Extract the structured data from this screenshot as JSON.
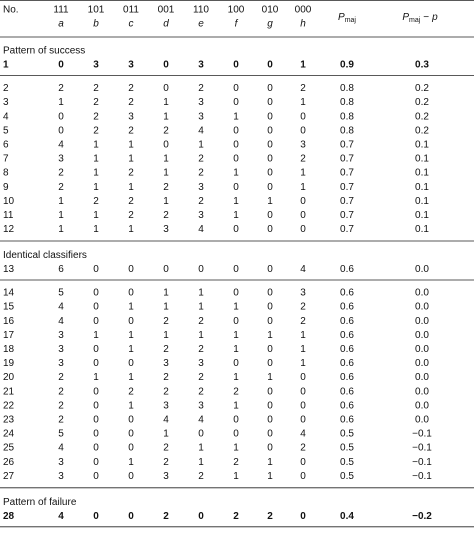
{
  "header": {
    "no": "No.",
    "columns": [
      {
        "code": "111",
        "letter": "a"
      },
      {
        "code": "101",
        "letter": "b"
      },
      {
        "code": "011",
        "letter": "c"
      },
      {
        "code": "001",
        "letter": "d"
      },
      {
        "code": "110",
        "letter": "e"
      },
      {
        "code": "100",
        "letter": "f"
      },
      {
        "code": "010",
        "letter": "g"
      },
      {
        "code": "000",
        "letter": "h"
      }
    ],
    "pmaj": {
      "main": "P",
      "sub": "maj"
    },
    "diff": {
      "main": "P",
      "sub": "maj",
      "op": "−",
      "var": "p"
    }
  },
  "sections": [
    {
      "title": "Pattern of success",
      "rows": [
        [
          "1",
          "0",
          "3",
          "3",
          "0",
          "3",
          "0",
          "0",
          "1",
          "0.9",
          "0.3"
        ],
        [
          "2",
          "2",
          "2",
          "2",
          "0",
          "2",
          "0",
          "0",
          "2",
          "0.8",
          "0.2"
        ],
        [
          "3",
          "1",
          "2",
          "2",
          "1",
          "3",
          "0",
          "0",
          "1",
          "0.8",
          "0.2"
        ],
        [
          "4",
          "0",
          "2",
          "3",
          "1",
          "3",
          "1",
          "0",
          "0",
          "0.8",
          "0.2"
        ],
        [
          "5",
          "0",
          "2",
          "2",
          "2",
          "4",
          "0",
          "0",
          "0",
          "0.8",
          "0.2"
        ],
        [
          "6",
          "4",
          "1",
          "1",
          "0",
          "1",
          "0",
          "0",
          "3",
          "0.7",
          "0.1"
        ],
        [
          "7",
          "3",
          "1",
          "1",
          "1",
          "2",
          "0",
          "0",
          "2",
          "0.7",
          "0.1"
        ],
        [
          "8",
          "2",
          "1",
          "2",
          "1",
          "2",
          "1",
          "0",
          "1",
          "0.7",
          "0.1"
        ],
        [
          "9",
          "2",
          "1",
          "1",
          "2",
          "3",
          "0",
          "0",
          "1",
          "0.7",
          "0.1"
        ],
        [
          "10",
          "1",
          "2",
          "2",
          "1",
          "2",
          "1",
          "1",
          "0",
          "0.7",
          "0.1"
        ],
        [
          "11",
          "1",
          "1",
          "2",
          "2",
          "3",
          "1",
          "0",
          "0",
          "0.7",
          "0.1"
        ],
        [
          "12",
          "1",
          "1",
          "1",
          "3",
          "4",
          "0",
          "0",
          "0",
          "0.7",
          "0.1"
        ]
      ]
    },
    {
      "title": "Identical classifiers",
      "rows": [
        [
          "13",
          "6",
          "0",
          "0",
          "0",
          "0",
          "0",
          "0",
          "4",
          "0.6",
          "0.0"
        ],
        [
          "14",
          "5",
          "0",
          "0",
          "1",
          "1",
          "0",
          "0",
          "3",
          "0.6",
          "0.0"
        ],
        [
          "15",
          "4",
          "0",
          "1",
          "1",
          "1",
          "1",
          "0",
          "2",
          "0.6",
          "0.0"
        ],
        [
          "16",
          "4",
          "0",
          "0",
          "2",
          "2",
          "0",
          "0",
          "2",
          "0.6",
          "0.0"
        ],
        [
          "17",
          "3",
          "1",
          "1",
          "1",
          "1",
          "1",
          "1",
          "1",
          "0.6",
          "0.0"
        ],
        [
          "18",
          "3",
          "0",
          "1",
          "2",
          "2",
          "1",
          "0",
          "1",
          "0.6",
          "0.0"
        ],
        [
          "19",
          "3",
          "0",
          "0",
          "3",
          "3",
          "0",
          "0",
          "1",
          "0.6",
          "0.0"
        ],
        [
          "20",
          "2",
          "1",
          "1",
          "2",
          "2",
          "1",
          "1",
          "0",
          "0.6",
          "0.0"
        ],
        [
          "21",
          "2",
          "0",
          "2",
          "2",
          "2",
          "2",
          "0",
          "0",
          "0.6",
          "0.0"
        ],
        [
          "22",
          "2",
          "0",
          "1",
          "3",
          "3",
          "1",
          "0",
          "0",
          "0.6",
          "0.0"
        ],
        [
          "23",
          "2",
          "0",
          "0",
          "4",
          "4",
          "0",
          "0",
          "0",
          "0.6",
          "0.0"
        ],
        [
          "24",
          "5",
          "0",
          "0",
          "1",
          "0",
          "0",
          "0",
          "4",
          "0.5",
          "−0.1"
        ],
        [
          "25",
          "4",
          "0",
          "0",
          "2",
          "1",
          "1",
          "0",
          "2",
          "0.5",
          "−0.1"
        ],
        [
          "26",
          "3",
          "0",
          "1",
          "2",
          "1",
          "2",
          "1",
          "0",
          "0.5",
          "−0.1"
        ],
        [
          "27",
          "3",
          "0",
          "0",
          "3",
          "2",
          "1",
          "1",
          "0",
          "0.5",
          "−0.1"
        ]
      ]
    },
    {
      "title": "Pattern of failure",
      "rows": [
        [
          "28",
          "4",
          "0",
          "0",
          "2",
          "0",
          "2",
          "2",
          "0",
          "0.4",
          "−0.2"
        ]
      ]
    }
  ]
}
